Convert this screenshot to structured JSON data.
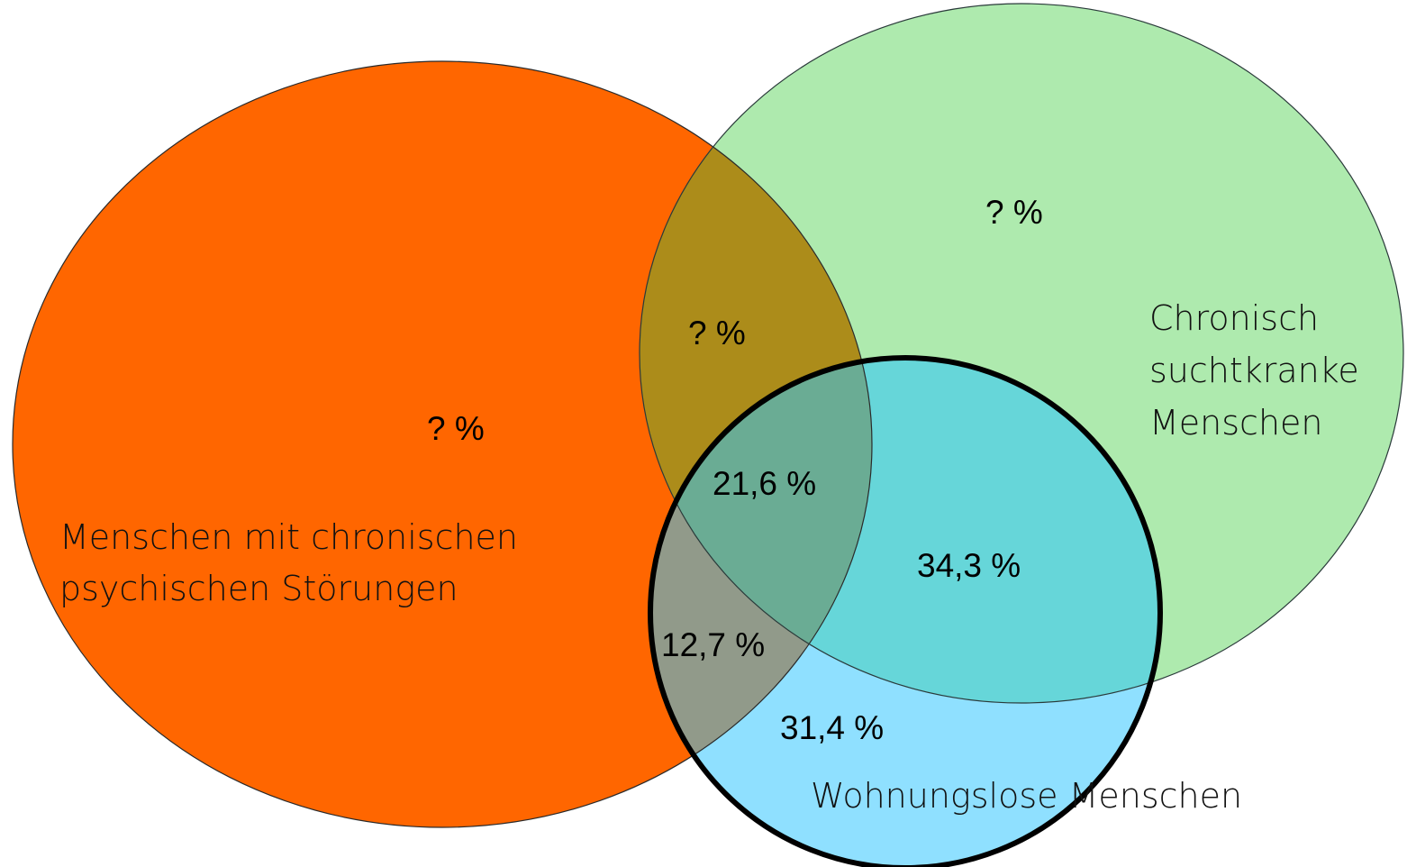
{
  "regions": {
    "psychisch_only": "? %",
    "psychisch_sucht": "? %",
    "sucht_only": "? %",
    "all_three": "21,6 %",
    "sucht_wohnungslos": "34,3 %",
    "psychisch_wohnungslos": "12,7 %",
    "wohnungslos_only": "31,4 %"
  },
  "sets": {
    "psychisch": [
      "Menschen mit chronischen",
      "psychischen Störungen"
    ],
    "sucht": [
      "Chronisch",
      "suchtkranke",
      "Menschen"
    ],
    "wohnungslos": [
      "Wohnungslose Menschen"
    ]
  }
}
